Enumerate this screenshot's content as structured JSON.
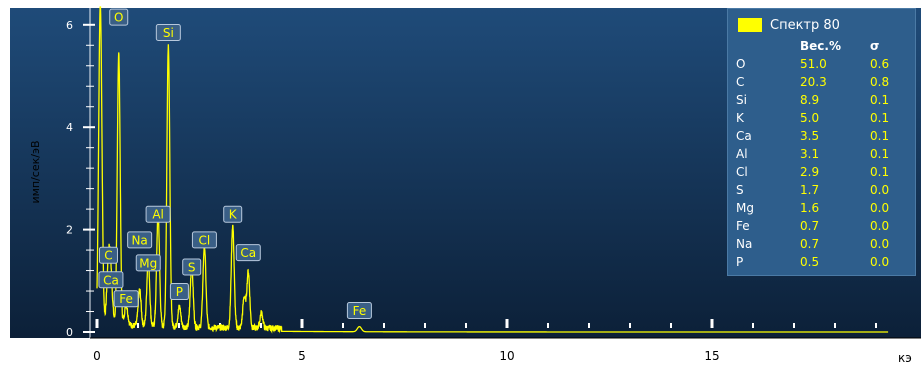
{
  "chart_data": {
    "type": "line",
    "ylabel": "имп/сек/эВ",
    "xunit": "кэ",
    "xlim": [
      0,
      19.3
    ],
    "ylim": [
      0,
      6.3
    ],
    "x_ticks": [
      "0",
      "5",
      "10",
      "15"
    ],
    "y_ticks": [
      "0",
      "2",
      "4",
      "6"
    ],
    "series": [
      {
        "name": "Спектр 80",
        "color": "#ffff00",
        "background": 0.1,
        "peaks": [
          {
            "x": 0.08,
            "y": 6.3,
            "w": 0.04
          },
          {
            "x": 0.28,
            "y": 1.2,
            "w": 0.04
          },
          {
            "x": 0.34,
            "y": 0.8,
            "w": 0.04
          },
          {
            "x": 0.53,
            "y": 5.3,
            "w": 0.035
          },
          {
            "x": 0.71,
            "y": 0.4,
            "w": 0.04
          },
          {
            "x": 1.04,
            "y": 0.7,
            "w": 0.035
          },
          {
            "x": 1.25,
            "y": 1.3,
            "w": 0.035
          },
          {
            "x": 1.49,
            "y": 2.2,
            "w": 0.035
          },
          {
            "x": 1.74,
            "y": 5.5,
            "w": 0.035
          },
          {
            "x": 2.01,
            "y": 0.4,
            "w": 0.035
          },
          {
            "x": 2.31,
            "y": 1.2,
            "w": 0.035
          },
          {
            "x": 2.62,
            "y": 1.6,
            "w": 0.035
          },
          {
            "x": 3.31,
            "y": 2.0,
            "w": 0.035
          },
          {
            "x": 3.59,
            "y": 0.6,
            "w": 0.035
          },
          {
            "x": 3.69,
            "y": 1.1,
            "w": 0.035
          },
          {
            "x": 4.01,
            "y": 0.3,
            "w": 0.035
          },
          {
            "x": 6.4,
            "y": 0.1,
            "w": 0.05
          }
        ]
      }
    ],
    "element_labels": [
      {
        "text": "O",
        "x": 0.53,
        "y": 6.15
      },
      {
        "text": "Si",
        "x": 1.74,
        "y": 5.85
      },
      {
        "text": "Al",
        "x": 1.49,
        "y": 2.3
      },
      {
        "text": "Na",
        "x": 1.04,
        "y": 1.8
      },
      {
        "text": "C",
        "x": 0.28,
        "y": 1.5
      },
      {
        "text": "Mg",
        "x": 1.25,
        "y": 1.35
      },
      {
        "text": "Ca",
        "x": 0.34,
        "y": 1.02
      },
      {
        "text": "Fe",
        "x": 0.71,
        "y": 0.65
      },
      {
        "text": "Cl",
        "x": 2.62,
        "y": 1.8
      },
      {
        "text": "S",
        "x": 2.31,
        "y": 1.27
      },
      {
        "text": "P",
        "x": 2.01,
        "y": 0.79
      },
      {
        "text": "K",
        "x": 3.31,
        "y": 2.3
      },
      {
        "text": "Ca",
        "x": 3.69,
        "y": 1.55
      },
      {
        "text": "Fe",
        "x": 6.4,
        "y": 0.42
      }
    ],
    "legend": {
      "title": "Спектр 80",
      "columns": [
        "Вес.%",
        "σ"
      ],
      "rows": [
        {
          "element": "O",
          "weight": "51.0",
          "sigma": "0.6"
        },
        {
          "element": "C",
          "weight": "20.3",
          "sigma": "0.8"
        },
        {
          "element": "Si",
          "weight": "8.9",
          "sigma": "0.1"
        },
        {
          "element": "K",
          "weight": "5.0",
          "sigma": "0.1"
        },
        {
          "element": "Ca",
          "weight": "3.5",
          "sigma": "0.1"
        },
        {
          "element": "Al",
          "weight": "3.1",
          "sigma": "0.1"
        },
        {
          "element": "Cl",
          "weight": "2.9",
          "sigma": "0.1"
        },
        {
          "element": "S",
          "weight": "1.7",
          "sigma": "0.0"
        },
        {
          "element": "Mg",
          "weight": "1.6",
          "sigma": "0.0"
        },
        {
          "element": "Fe",
          "weight": "0.7",
          "sigma": "0.0"
        },
        {
          "element": "Na",
          "weight": "0.7",
          "sigma": "0.0"
        },
        {
          "element": "P",
          "weight": "0.5",
          "sigma": "0.0"
        }
      ]
    },
    "colors": {
      "plot_bg_top": "#1f4b79",
      "plot_bg_bottom": "#0c2038",
      "spectrum": "#ffff00",
      "label_bg": "#3a5f86",
      "label_border": "#b7c8dc",
      "panel_bg": "#2e5e8c"
    }
  }
}
